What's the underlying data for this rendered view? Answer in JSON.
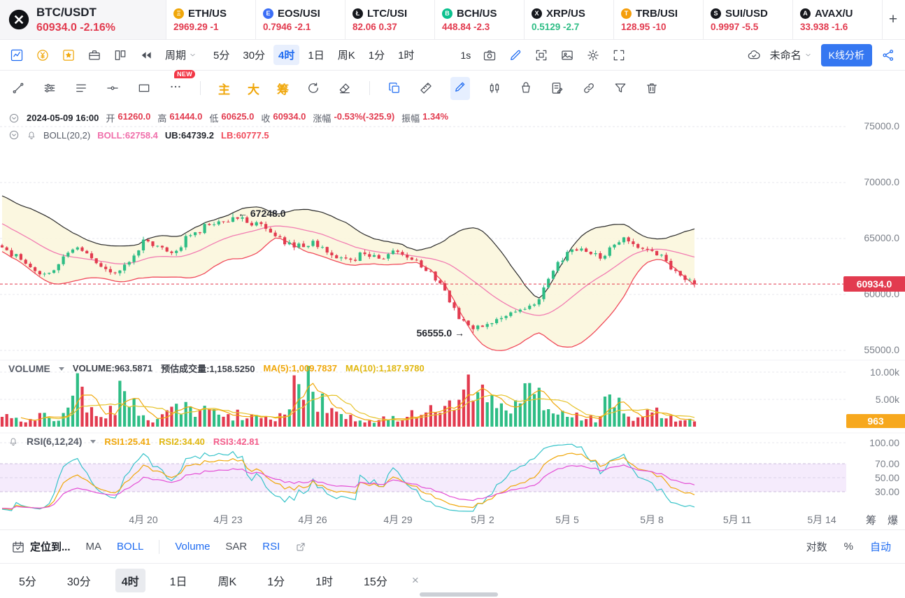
{
  "theme": {
    "accent": "#1e6bf1",
    "down": "#e23b4f",
    "up": "#2ebd85",
    "gold": "#f0a70a"
  },
  "tickers": {
    "items": [
      {
        "pair": "BTC/USDT",
        "price": "60934.0",
        "change": "-2.16%",
        "dir": "down",
        "icon": "btc-icon",
        "icon_color": "#101216",
        "glyph": "B",
        "selected": true
      },
      {
        "pair": "ETH/US",
        "price": "2969.29",
        "change": "-1",
        "dir": "down",
        "icon": "eth-icon",
        "icon_color": "#f0a70a",
        "glyph": "Ξ",
        "selected": false
      },
      {
        "pair": "EOS/USI",
        "price": "0.7946",
        "change": "-2.1",
        "dir": "down",
        "icon": "eos-icon",
        "icon_color": "#3b6ef6",
        "glyph": "E",
        "selected": false
      },
      {
        "pair": "LTC/USI",
        "price": "82.06",
        "change": "0.37",
        "dir": "down",
        "icon": "ltc-icon",
        "icon_color": "#16181d",
        "glyph": "Ł",
        "selected": false
      },
      {
        "pair": "BCH/US",
        "price": "448.84",
        "change": "-2.3",
        "dir": "down",
        "icon": "bch-icon",
        "icon_color": "#0ac18e",
        "glyph": "B",
        "selected": false
      },
      {
        "pair": "XRP/US",
        "price": "0.5129",
        "change": "-2.7",
        "dir": "up",
        "icon": "xrp-icon",
        "icon_color": "#16181d",
        "glyph": "X",
        "selected": false
      },
      {
        "pair": "TRB/USI",
        "price": "128.95",
        "change": "-10",
        "dir": "down",
        "icon": "trb-icon",
        "icon_color": "#f59e0b",
        "glyph": "T",
        "selected": false
      },
      {
        "pair": "SUI/USD",
        "price": "0.9997",
        "change": "-5.5",
        "dir": "down",
        "icon": "sui-icon",
        "icon_color": "#16181d",
        "glyph": "S",
        "selected": false
      },
      {
        "pair": "AVAX/U",
        "price": "33.938",
        "change": "-1.6",
        "dir": "down",
        "icon": "avax-icon",
        "icon_color": "#16181d",
        "glyph": "A",
        "selected": false
      }
    ],
    "add_label": "+"
  },
  "toolbar": {
    "period_label": "周期",
    "timeframes": [
      "5分",
      "30分",
      "4时",
      "1日",
      "周K",
      "1分",
      "1时"
    ],
    "active_timeframe": "4时",
    "speed_label": "1s",
    "layout_name": "未命名",
    "kline_analysis_label": "K线分析"
  },
  "drawbar": {
    "new_badge": "NEW",
    "quick_items": [
      "主",
      "大",
      "筹"
    ]
  },
  "chart": {
    "info": {
      "datetime": "2024-05-09 16:00",
      "open_label": "开",
      "open": "61260.0",
      "high_label": "高",
      "high": "61444.0",
      "low_label": "低",
      "low": "60625.0",
      "close_label": "收",
      "close": "60934.0",
      "change_label": "涨幅",
      "change": "-0.53%(-325.9)",
      "amplitude_label": "振幅",
      "amplitude": "1.34%"
    },
    "boll": {
      "name": "BOLL(20,2)",
      "mb_label": "BOLL:62758.4",
      "ub_label": "UB:64739.2",
      "lb_label": "LB:60777.5"
    },
    "annotations": {
      "high": "← 67248.0",
      "low": "56555.0 →"
    },
    "price_axis": [
      "75000.0",
      "70000.0",
      "65000.0",
      "60000.0",
      "55000.0"
    ],
    "last_price": "60934.0",
    "volume": {
      "title": "VOLUME",
      "value_label": "VOLUME:963.5871",
      "est_label": "预估成交量:1,158.5250",
      "ma5_label": "MA(5):1,009.7837",
      "ma10_label": "MA(10):1,187.9780",
      "axis": [
        "10.00k",
        "5.00k"
      ],
      "tag": "963"
    },
    "rsi": {
      "name": "RSI(6,12,24)",
      "rsi1_label": "RSI1:25.41",
      "rsi2_label": "RSI2:34.40",
      "rsi3_label": "RSI3:42.81",
      "axis": [
        "100.00",
        "70.00",
        "50.00",
        "30.00"
      ]
    },
    "x_axis": {
      "labels": [
        {
          "label": "4月 20",
          "i": 30
        },
        {
          "label": "4月 23",
          "i": 48
        },
        {
          "label": "4月 26",
          "i": 66
        },
        {
          "label": "4月 29",
          "i": 84
        },
        {
          "label": "5月 2",
          "i": 102
        },
        {
          "label": "5月 5",
          "i": 120
        },
        {
          "label": "5月 8",
          "i": 138
        },
        {
          "label": "5月 11",
          "i": 156
        },
        {
          "label": "5月 14",
          "i": 174
        }
      ],
      "right_tools": [
        "筹",
        "爆"
      ]
    }
  },
  "chart_data": {
    "type": "candlestick+volume+rsi",
    "symbol": "BTC/USDT",
    "interval": "4h",
    "num_candles": 148,
    "price_anchors": [
      [
        0,
        64200
      ],
      [
        4,
        63100
      ],
      [
        8,
        61800
      ],
      [
        12,
        62700
      ],
      [
        16,
        64200
      ],
      [
        20,
        62800
      ],
      [
        24,
        61900
      ],
      [
        27,
        62900
      ],
      [
        30,
        64900
      ],
      [
        34,
        64200
      ],
      [
        36,
        63700
      ],
      [
        40,
        65300
      ],
      [
        44,
        66200
      ],
      [
        47,
        66500
      ],
      [
        49,
        66900
      ],
      [
        52,
        66400
      ],
      [
        55,
        66300
      ],
      [
        58,
        65200
      ],
      [
        62,
        64200
      ],
      [
        66,
        64800
      ],
      [
        70,
        63500
      ],
      [
        74,
        63100
      ],
      [
        77,
        63600
      ],
      [
        80,
        63200
      ],
      [
        84,
        63800
      ],
      [
        87,
        63100
      ],
      [
        90,
        62100
      ],
      [
        93,
        61000
      ],
      [
        95,
        59300
      ],
      [
        97,
        57800
      ],
      [
        100,
        56900
      ],
      [
        102,
        57100
      ],
      [
        105,
        57800
      ],
      [
        108,
        58400
      ],
      [
        111,
        58700
      ],
      [
        113,
        59100
      ],
      [
        116,
        61400
      ],
      [
        118,
        62900
      ],
      [
        120,
        63800
      ],
      [
        123,
        64100
      ],
      [
        125,
        63600
      ],
      [
        127,
        63200
      ],
      [
        129,
        64200
      ],
      [
        132,
        65100
      ],
      [
        134,
        64500
      ],
      [
        137,
        64000
      ],
      [
        139,
        63500
      ],
      [
        141,
        63000
      ],
      [
        143,
        62100
      ],
      [
        145,
        61300
      ],
      [
        147,
        60934
      ]
    ],
    "pre_anchors": [
      [
        0,
        69800
      ],
      [
        6,
        68200
      ],
      [
        12,
        66800
      ],
      [
        18,
        65600
      ],
      [
        23,
        64600
      ]
    ],
    "volume_anchors": [
      [
        0,
        1800
      ],
      [
        6,
        1400
      ],
      [
        13,
        2500
      ],
      [
        16,
        9800
      ],
      [
        18,
        2600
      ],
      [
        22,
        1500
      ],
      [
        26,
        6500
      ],
      [
        29,
        2000
      ],
      [
        33,
        1400
      ],
      [
        37,
        4200
      ],
      [
        41,
        1800
      ],
      [
        44,
        3200
      ],
      [
        48,
        2300
      ],
      [
        52,
        1500
      ],
      [
        57,
        1300
      ],
      [
        60,
        2200
      ],
      [
        63,
        7800
      ],
      [
        66,
        6400
      ],
      [
        69,
        2500
      ],
      [
        73,
        1400
      ],
      [
        78,
        1100
      ],
      [
        82,
        1300
      ],
      [
        86,
        1800
      ],
      [
        90,
        2600
      ],
      [
        94,
        3800
      ],
      [
        98,
        6800
      ],
      [
        100,
        4800
      ],
      [
        102,
        7700
      ],
      [
        105,
        3400
      ],
      [
        108,
        2400
      ],
      [
        112,
        8000
      ],
      [
        115,
        3000
      ],
      [
        118,
        2200
      ],
      [
        121,
        1700
      ],
      [
        124,
        1400
      ],
      [
        127,
        1900
      ],
      [
        129,
        5900
      ],
      [
        132,
        2400
      ],
      [
        135,
        1700
      ],
      [
        138,
        2600
      ],
      [
        141,
        1500
      ],
      [
        144,
        1100
      ],
      [
        147,
        963.59
      ]
    ],
    "forced": {
      "high_idx": 49,
      "high": 67248.0,
      "low_idx": 100,
      "low": 56555.0,
      "last": {
        "open": 61260.0,
        "high": 61444.0,
        "low": 60625.0,
        "close": 60934.0
      }
    },
    "price_gridlines": [
      75000,
      70000,
      65000,
      60000,
      55000
    ],
    "volume_gridlines": [
      10000,
      5000
    ],
    "rsi_gridlines": [
      100,
      70,
      50,
      30
    ],
    "last_price": 60934.0,
    "boll": {
      "period": 20,
      "mult": 2,
      "mb": 62758.4,
      "ub": 64739.2,
      "lb": 60777.5
    },
    "rsi_periods": [
      6,
      12,
      24
    ],
    "rsi_last": [
      25.41,
      34.4,
      42.81
    ],
    "volume_last": 963.5871,
    "volume_ma5_last": 1009.7837,
    "volume_ma10_last": 1187.978,
    "colors": {
      "up": "#2ebd85",
      "down": "#e23b4f",
      "boll_ub": "#2b2b2b",
      "boll_mb": "#f27cb1",
      "boll_lb": "#f04a5a",
      "boll_fill": "#fbf6dd",
      "vol_ma5": "#f0a70a",
      "vol_ma10": "#e6c32a",
      "rsi1": "#36c3c9",
      "rsi2": "#f0a70a",
      "rsi3": "#e44fd5",
      "rsi_band": "#f3e7fb"
    }
  },
  "footer": {
    "locate_label": "定位到...",
    "indicators": [
      {
        "label": "MA",
        "active": false
      },
      {
        "label": "BOLL",
        "active": true
      },
      {
        "label": "Volume",
        "active": true
      },
      {
        "label": "SAR",
        "active": false
      },
      {
        "label": "RSI",
        "active": true
      }
    ],
    "right": [
      {
        "label": "对数",
        "active": false
      },
      {
        "label": "%",
        "active": false
      },
      {
        "label": "自动",
        "active": true
      }
    ]
  },
  "bottom_tabs": {
    "items": [
      "5分",
      "30分",
      "4时",
      "1日",
      "周K",
      "1分",
      "1时",
      "15分"
    ],
    "active": "4时",
    "close": "×"
  }
}
